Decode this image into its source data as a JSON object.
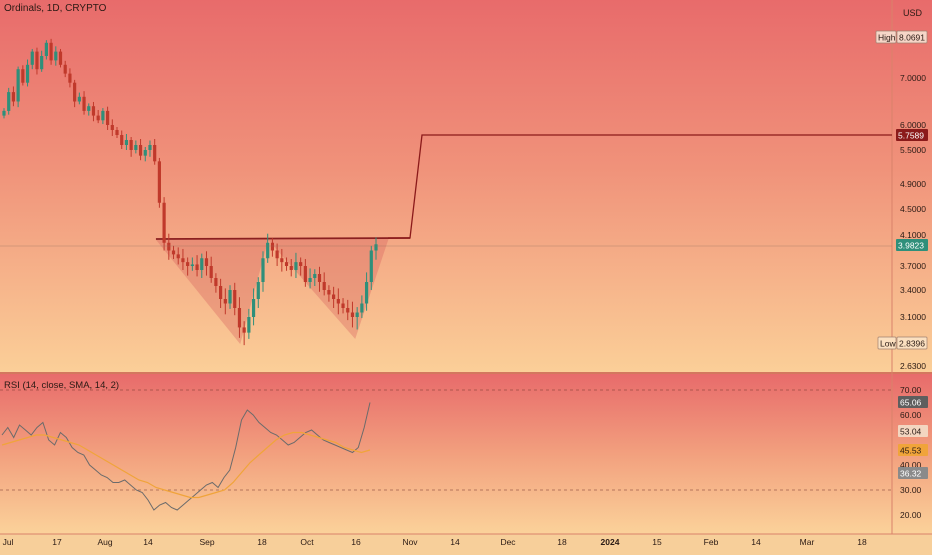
{
  "header": {
    "symbol": "Ordinals, 1D, CRYPTO",
    "currency": "USD"
  },
  "price_axis": {
    "ticks": [
      "7.0000",
      "6.0000",
      "5.5000",
      "4.9000",
      "4.5000",
      "4.1000",
      "3.7000",
      "3.4000",
      "3.1000",
      "2.6300"
    ],
    "high_label": "High",
    "high_value": "8.0691",
    "low_label": "Low",
    "low_value": "2.8396",
    "target_value": "5.7589",
    "current_value": "3.9823"
  },
  "rsi_panel": {
    "title": "RSI (14, close, SMA, 14, 2)",
    "ticks": [
      "70.00",
      "60.00",
      "40.00",
      "30.00",
      "20.00"
    ],
    "rsi_value": "65.06",
    "upper_band": "53.04",
    "sma_value": "45.53",
    "lower_band": "36.32"
  },
  "x_axis": {
    "ticks": [
      "Jul",
      "17",
      "Aug",
      "14",
      "Sep",
      "18",
      "Oct",
      "16",
      "Nov",
      "14",
      "Dec",
      "18",
      "2024",
      "15",
      "Feb",
      "14",
      "Mar",
      "18"
    ]
  },
  "colors": {
    "candle_up": "#2f8f7a",
    "candle_down": "#c0392b",
    "pattern": "#d45a5a",
    "target": "#8b1a1a",
    "rsi": "#6b6b6b",
    "rsi_sma": "#f0a43a"
  },
  "chart_data": {
    "type": "candlestick",
    "price": {
      "close": [
        6.3,
        6.7,
        6.5,
        7.2,
        6.9,
        7.3,
        7.6,
        7.2,
        7.5,
        7.8,
        7.4,
        7.6,
        7.3,
        7.1,
        6.9,
        6.5,
        6.6,
        6.3,
        6.4,
        6.2,
        6.1,
        6.3,
        6.0,
        5.9,
        5.8,
        5.6,
        5.7,
        5.5,
        5.6,
        5.4,
        5.5,
        5.6,
        5.3,
        4.6,
        4.0,
        3.9,
        3.85,
        3.8,
        3.75,
        3.7,
        3.72,
        3.65,
        3.8,
        3.7,
        3.55,
        3.45,
        3.3,
        3.25,
        3.4,
        3.2,
        3.0,
        2.95,
        3.1,
        3.3,
        3.5,
        3.8,
        4.0,
        3.9,
        3.8,
        3.75,
        3.7,
        3.65,
        3.75,
        3.7,
        3.5,
        3.55,
        3.6,
        3.5,
        3.4,
        3.35,
        3.3,
        3.25,
        3.2,
        3.15,
        3.1,
        3.15,
        3.25,
        3.5,
        3.9,
        3.98
      ],
      "high": "8.0691",
      "low": "2.8396",
      "neckline": 4.05,
      "target": 5.7589
    },
    "rsi": {
      "values": [
        52,
        55,
        51,
        56,
        54,
        52,
        55,
        57,
        50,
        48,
        53,
        51,
        47,
        45,
        44,
        40,
        38,
        36,
        35,
        33,
        33,
        34,
        32,
        30,
        29,
        26,
        22,
        24,
        25,
        23,
        22,
        24,
        26,
        28,
        30,
        32,
        33,
        31,
        35,
        38,
        47,
        58,
        62,
        60,
        57,
        55,
        53,
        52,
        50,
        48,
        49,
        51,
        53,
        54,
        52,
        50,
        49,
        48,
        47,
        46,
        45,
        47,
        55,
        65
      ],
      "sma": [
        48,
        49,
        50,
        51,
        52,
        52,
        51,
        50,
        49,
        48,
        46,
        44,
        42,
        40,
        38,
        36,
        34,
        33,
        31,
        30,
        29,
        28,
        27,
        27,
        28,
        29,
        30,
        33,
        37,
        41,
        44,
        47,
        50,
        52,
        53,
        53,
        52,
        51,
        50,
        49,
        47,
        46,
        45,
        46
      ],
      "levels": [
        70,
        30
      ]
    }
  }
}
